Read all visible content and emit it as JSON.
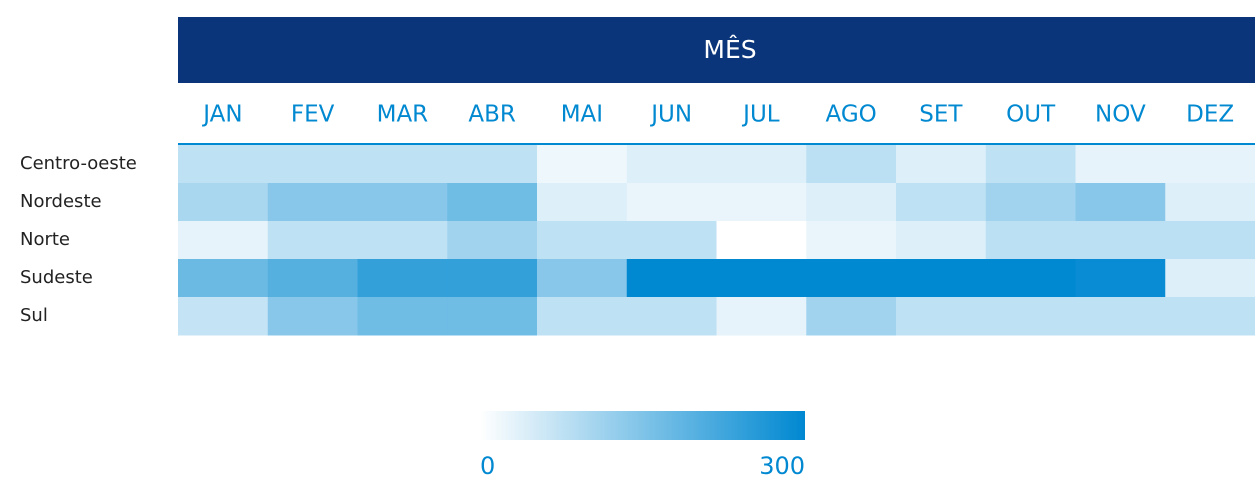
{
  "chart_data": {
    "type": "heatmap",
    "x_label": "MÊS",
    "categories": [
      "JAN",
      "FEV",
      "MAR",
      "ABR",
      "MAI",
      "JUN",
      "JUL",
      "AGO",
      "SET",
      "OUT",
      "NOV",
      "DEZ"
    ],
    "rows": [
      "Centro-oeste",
      "Nordeste",
      "Norte",
      "Sudeste",
      "Sul"
    ],
    "z": [
      [
        75,
        75,
        75,
        75,
        20,
        40,
        40,
        80,
        40,
        75,
        30,
        30
      ],
      [
        100,
        140,
        140,
        170,
        40,
        25,
        25,
        40,
        75,
        110,
        140,
        40
      ],
      [
        30,
        75,
        75,
        110,
        75,
        75,
        0,
        25,
        40,
        80,
        80,
        80
      ],
      [
        175,
        200,
        240,
        240,
        140,
        300,
        300,
        300,
        300,
        300,
        290,
        40
      ],
      [
        70,
        140,
        170,
        170,
        75,
        75,
        30,
        110,
        75,
        75,
        75,
        75
      ]
    ],
    "colorscale": [
      "#ffffff",
      "#0088d1"
    ],
    "zlim": [
      0,
      300
    ],
    "zticks": [
      0,
      300
    ]
  }
}
